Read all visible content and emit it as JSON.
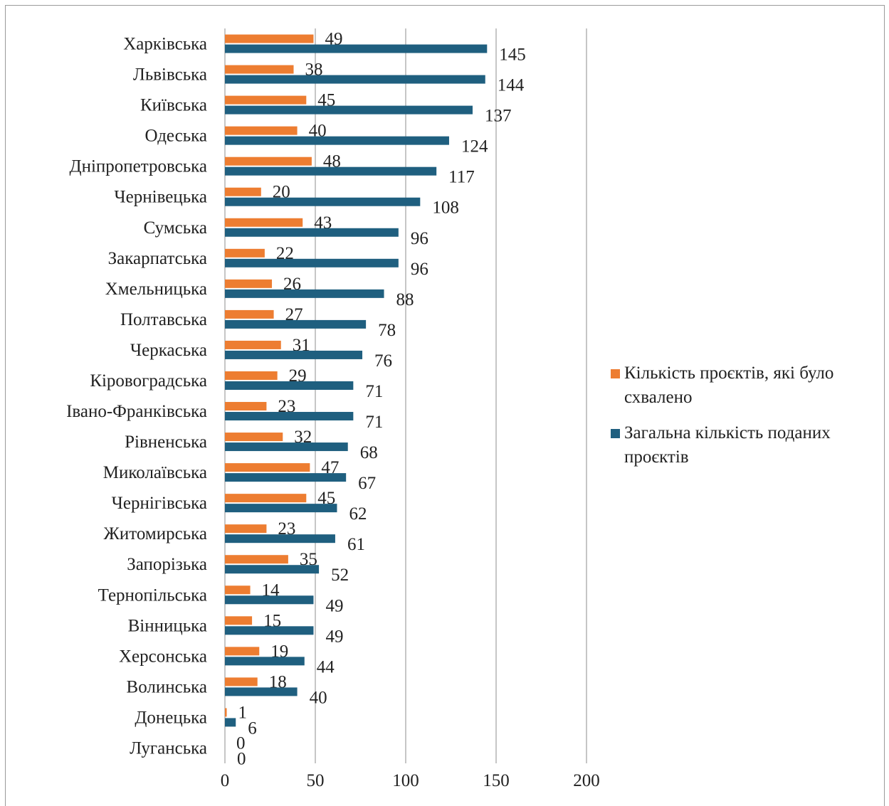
{
  "chart_data": {
    "type": "bar",
    "orientation": "horizontal",
    "categories": [
      "Харківська",
      "Львівська",
      "Київська",
      "Одеська",
      "Дніпропетровська",
      "Чернівецька",
      "Сумська",
      "Закарпатська",
      "Хмельницька",
      "Полтавська",
      "Черкаська",
      "Кіровоградська",
      "Івано-Франківська",
      "Рівненська",
      "Миколаївська",
      "Чернігівська",
      "Житомирська",
      "Запорізька",
      "Тернопільська",
      "Вінницька",
      "Херсонська",
      "Волинська",
      "Донецька",
      "Луганська"
    ],
    "series": [
      {
        "name": "Кількість проєктів, які було схвалено",
        "color": "#ed7d31",
        "values": [
          49,
          38,
          45,
          40,
          48,
          20,
          43,
          22,
          26,
          27,
          31,
          29,
          23,
          32,
          47,
          45,
          23,
          35,
          14,
          15,
          19,
          18,
          1,
          0
        ]
      },
      {
        "name": "Загальна кількість поданих проєктів",
        "color": "#1f5f7f",
        "values": [
          145,
          144,
          137,
          124,
          117,
          108,
          96,
          96,
          88,
          78,
          76,
          71,
          71,
          68,
          67,
          62,
          61,
          52,
          49,
          49,
          44,
          40,
          6,
          0
        ]
      }
    ],
    "xlim": [
      0,
      200
    ],
    "xticks": [
      "0",
      "50",
      "100",
      "150",
      "200"
    ],
    "grid": true,
    "legend_position": "right"
  }
}
